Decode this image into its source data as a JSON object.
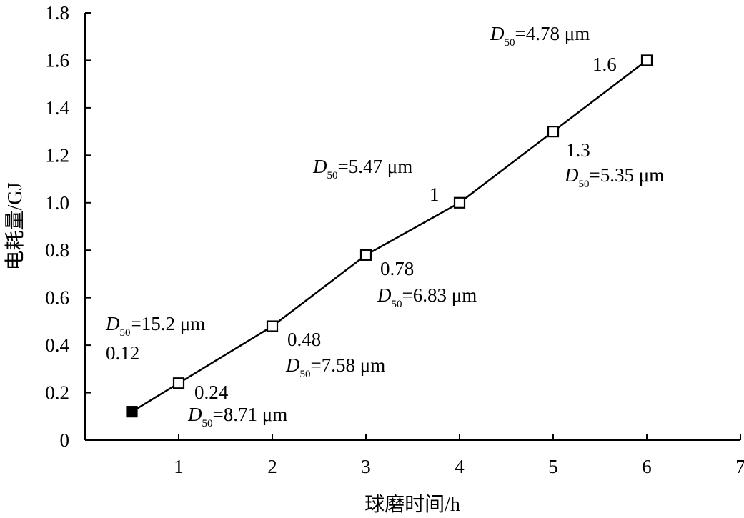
{
  "chart_data": {
    "type": "line",
    "title": "",
    "xlabel": "球磨时间/h",
    "ylabel": "电耗量/GJ",
    "xlim": [
      0,
      7
    ],
    "ylim": [
      0,
      1.8
    ],
    "x_ticks": [
      1,
      2,
      3,
      4,
      5,
      6,
      7
    ],
    "x_tick_labels": [
      "1",
      "2",
      "3",
      "4",
      "5",
      "6",
      "7"
    ],
    "y_ticks": [
      0,
      0.2,
      0.4,
      0.6,
      0.8,
      1.0,
      1.2,
      1.4,
      1.6,
      1.8
    ],
    "y_tick_labels": [
      "0",
      "0.2",
      "0.4",
      "0.6",
      "0.8",
      "1.0",
      "1.2",
      "1.4",
      "1.6",
      "1.8"
    ],
    "grid": false,
    "legend": "none",
    "series": [
      {
        "x": [
          0.5,
          1,
          2,
          3,
          4,
          5,
          6
        ],
        "y": [
          0.12,
          0.24,
          0.48,
          0.78,
          1.0,
          1.3,
          1.6
        ],
        "marker_styles": [
          "filled-square",
          "open-square",
          "open-square",
          "open-square",
          "open-square",
          "open-square",
          "open-square"
        ]
      }
    ],
    "annotations": [
      {
        "value_label": "0.12",
        "d50_symbol": "D",
        "d50_sub": "50",
        "d50_text": "=15.2  μm"
      },
      {
        "value_label": "0.24",
        "d50_symbol": "D",
        "d50_sub": "50",
        "d50_text": "=8.71 μm"
      },
      {
        "value_label": "0.48",
        "d50_symbol": "D",
        "d50_sub": "50",
        "d50_text": "=7.58 μm"
      },
      {
        "value_label": "0.78",
        "d50_symbol": "D",
        "d50_sub": "50",
        "d50_text": "=6.83 μm"
      },
      {
        "value_label": "1",
        "d50_symbol": "D",
        "d50_sub": "50",
        "d50_text": "=5.47 μm"
      },
      {
        "value_label": "1.3",
        "d50_symbol": "D",
        "d50_sub": "50",
        "d50_text": "=5.35 μm"
      },
      {
        "value_label": "1.6",
        "d50_symbol": "D",
        "d50_sub": "50",
        "d50_text": "=4.78 μm"
      }
    ],
    "colors": {
      "line": "#000000",
      "marker_fill_filled": "#000000",
      "marker_fill_open": "#ffffff"
    }
  }
}
